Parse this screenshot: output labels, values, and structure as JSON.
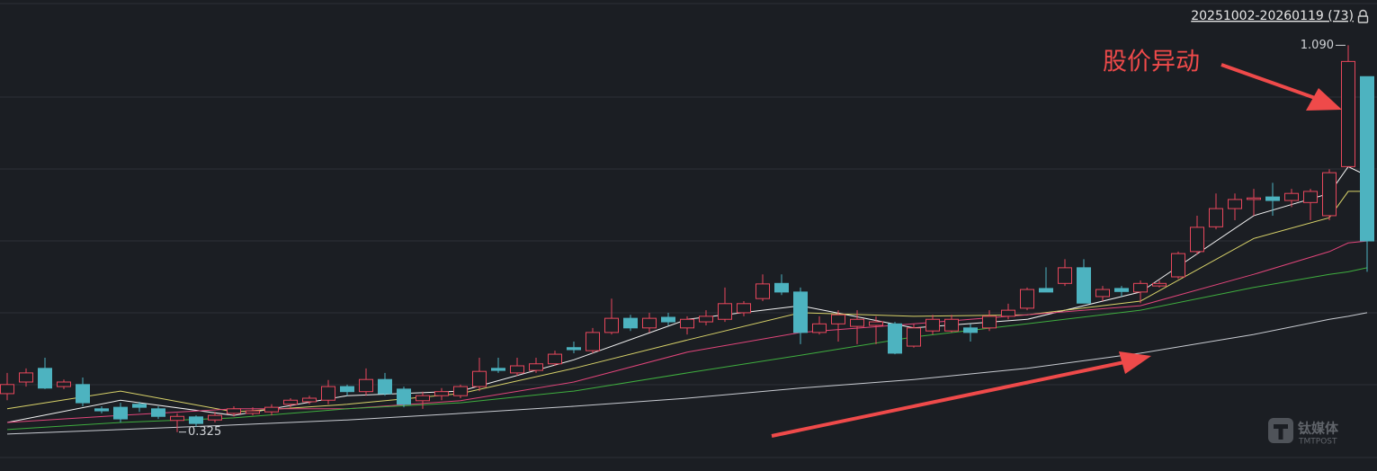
{
  "chart_data": {
    "type": "candlestick",
    "range_label": "20251002-20260119 (73)",
    "annotation": "股价异动",
    "watermark": "钛媒体",
    "watermark_sub": "TMTPOST",
    "up_color": "#e8475c",
    "down_color": "#4db3c0",
    "ylim": [
      0.28,
      1.16
    ],
    "high_marker": {
      "value": 1.09,
      "label": "1.090"
    },
    "low_marker": 0.325,
    "open": [
      0.401,
      0.424,
      0.451,
      0.415,
      0.419,
      0.371,
      0.374,
      0.38,
      0.371,
      0.348,
      0.355,
      0.349,
      0.362,
      0.362,
      0.365,
      0.38,
      0.385,
      0.388,
      0.415,
      0.405,
      0.429,
      0.41,
      0.387,
      0.397,
      0.397,
      0.415,
      0.451,
      0.442,
      0.447,
      0.46,
      0.492,
      0.486,
      0.522,
      0.55,
      0.531,
      0.552,
      0.531,
      0.543,
      0.548,
      0.561,
      0.589,
      0.619,
      0.602,
      0.522,
      0.539,
      0.534,
      0.536,
      0.539,
      0.495,
      0.525,
      0.525,
      0.531,
      0.531,
      0.554,
      0.57,
      0.609,
      0.619,
      0.65,
      0.593,
      0.609,
      0.602,
      0.614,
      0.632,
      0.682,
      0.731,
      0.767,
      0.785,
      0.79,
      0.783,
      0.779,
      0.753,
      0.85,
      1.028
    ],
    "high": [
      0.442,
      0.451,
      0.472,
      0.429,
      0.433,
      0.376,
      0.383,
      0.385,
      0.376,
      0.362,
      0.358,
      0.365,
      0.376,
      0.374,
      0.38,
      0.392,
      0.397,
      0.428,
      0.419,
      0.451,
      0.442,
      0.415,
      0.405,
      0.412,
      0.419,
      0.472,
      0.472,
      0.472,
      0.472,
      0.486,
      0.504,
      0.531,
      0.589,
      0.557,
      0.561,
      0.561,
      0.554,
      0.566,
      0.611,
      0.584,
      0.637,
      0.637,
      0.611,
      0.554,
      0.566,
      0.566,
      0.554,
      0.543,
      0.539,
      0.557,
      0.557,
      0.539,
      0.566,
      0.579,
      0.611,
      0.651,
      0.667,
      0.667,
      0.614,
      0.614,
      0.625,
      0.625,
      0.682,
      0.753,
      0.797,
      0.797,
      0.806,
      0.818,
      0.806,
      0.806,
      0.845,
      1.09,
      1.028
    ],
    "low": [
      0.388,
      0.415,
      0.41,
      0.41,
      0.376,
      0.362,
      0.344,
      0.365,
      0.351,
      0.325,
      0.335,
      0.344,
      0.356,
      0.358,
      0.358,
      0.374,
      0.38,
      0.38,
      0.397,
      0.397,
      0.397,
      0.374,
      0.371,
      0.388,
      0.392,
      0.406,
      0.442,
      0.436,
      0.442,
      0.456,
      0.481,
      0.481,
      0.518,
      0.525,
      0.522,
      0.536,
      0.518,
      0.536,
      0.543,
      0.554,
      0.584,
      0.596,
      0.499,
      0.518,
      0.504,
      0.499,
      0.499,
      0.479,
      0.492,
      0.518,
      0.522,
      0.504,
      0.525,
      0.548,
      0.566,
      0.602,
      0.614,
      0.58,
      0.584,
      0.593,
      0.58,
      0.611,
      0.628,
      0.676,
      0.726,
      0.744,
      0.753,
      0.753,
      0.77,
      0.744,
      0.744,
      0.85,
      0.642
    ],
    "close": [
      0.419,
      0.442,
      0.412,
      0.424,
      0.383,
      0.367,
      0.351,
      0.374,
      0.356,
      0.356,
      0.342,
      0.358,
      0.371,
      0.367,
      0.374,
      0.388,
      0.392,
      0.415,
      0.405,
      0.429,
      0.401,
      0.38,
      0.397,
      0.405,
      0.415,
      0.445,
      0.447,
      0.456,
      0.46,
      0.479,
      0.488,
      0.522,
      0.55,
      0.531,
      0.55,
      0.543,
      0.548,
      0.554,
      0.579,
      0.579,
      0.618,
      0.602,
      0.522,
      0.539,
      0.557,
      0.548,
      0.543,
      0.481,
      0.531,
      0.548,
      0.548,
      0.522,
      0.554,
      0.566,
      0.607,
      0.602,
      0.65,
      0.58,
      0.607,
      0.603,
      0.619,
      0.619,
      0.678,
      0.73,
      0.767,
      0.785,
      0.788,
      0.783,
      0.797,
      0.801,
      0.838,
      1.058,
      0.703
    ],
    "series": [
      {
        "color": "#f2f2f2",
        "x": [
          0,
          6,
          12,
          18,
          24,
          30,
          36,
          42,
          48,
          54,
          60,
          66,
          70,
          71,
          72
        ],
        "values": [
          0.344,
          0.388,
          0.358,
          0.397,
          0.406,
          0.468,
          0.548,
          0.575,
          0.531,
          0.548,
          0.602,
          0.753,
          0.797,
          0.85,
          0.832
        ]
      },
      {
        "color": "#d9d36a",
        "x": [
          0,
          6,
          12,
          18,
          24,
          30,
          36,
          42,
          48,
          54,
          60,
          66,
          70,
          71,
          72
        ],
        "values": [
          0.371,
          0.406,
          0.365,
          0.38,
          0.401,
          0.451,
          0.507,
          0.561,
          0.554,
          0.557,
          0.584,
          0.708,
          0.749,
          0.801,
          0.801
        ]
      },
      {
        "color": "#e0457a",
        "x": [
          0,
          6,
          12,
          18,
          24,
          30,
          36,
          42,
          48,
          54,
          60,
          66,
          70,
          71,
          72
        ],
        "values": [
          0.344,
          0.358,
          0.371,
          0.371,
          0.387,
          0.424,
          0.483,
          0.522,
          0.539,
          0.557,
          0.575,
          0.637,
          0.682,
          0.699,
          0.703
        ]
      },
      {
        "color": "#3fae3f",
        "x": [
          0,
          6,
          12,
          18,
          24,
          30,
          36,
          42,
          48,
          54,
          60,
          66,
          70,
          71,
          72
        ],
        "values": [
          0.33,
          0.344,
          0.353,
          0.371,
          0.383,
          0.406,
          0.442,
          0.477,
          0.513,
          0.539,
          0.566,
          0.611,
          0.637,
          0.642,
          0.65
        ]
      },
      {
        "color": "#c9ccd2",
        "x": [
          0,
          6,
          12,
          18,
          24,
          30,
          36,
          42,
          48,
          54,
          60,
          66,
          70,
          71,
          72
        ],
        "values": [
          0.321,
          0.33,
          0.339,
          0.349,
          0.362,
          0.376,
          0.392,
          0.412,
          0.429,
          0.451,
          0.481,
          0.518,
          0.548,
          0.554,
          0.561
        ]
      }
    ]
  }
}
